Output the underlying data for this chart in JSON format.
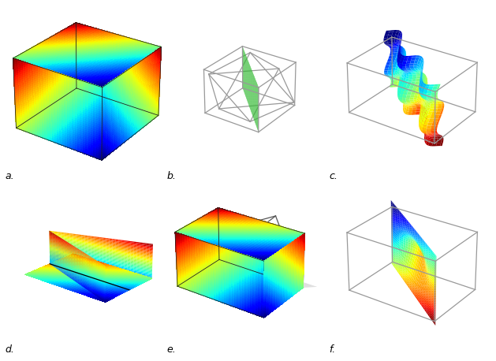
{
  "figure_size": [
    6.29,
    4.58
  ],
  "dpi": 100,
  "background_color": "#ffffff",
  "labels": [
    "a.",
    "b.",
    "c.",
    "d.",
    "e.",
    "f."
  ],
  "colormap": "jet",
  "box_color_dark": "#444444",
  "box_color_light": "#888888",
  "green_color": "#33bb33",
  "n_points": 35
}
